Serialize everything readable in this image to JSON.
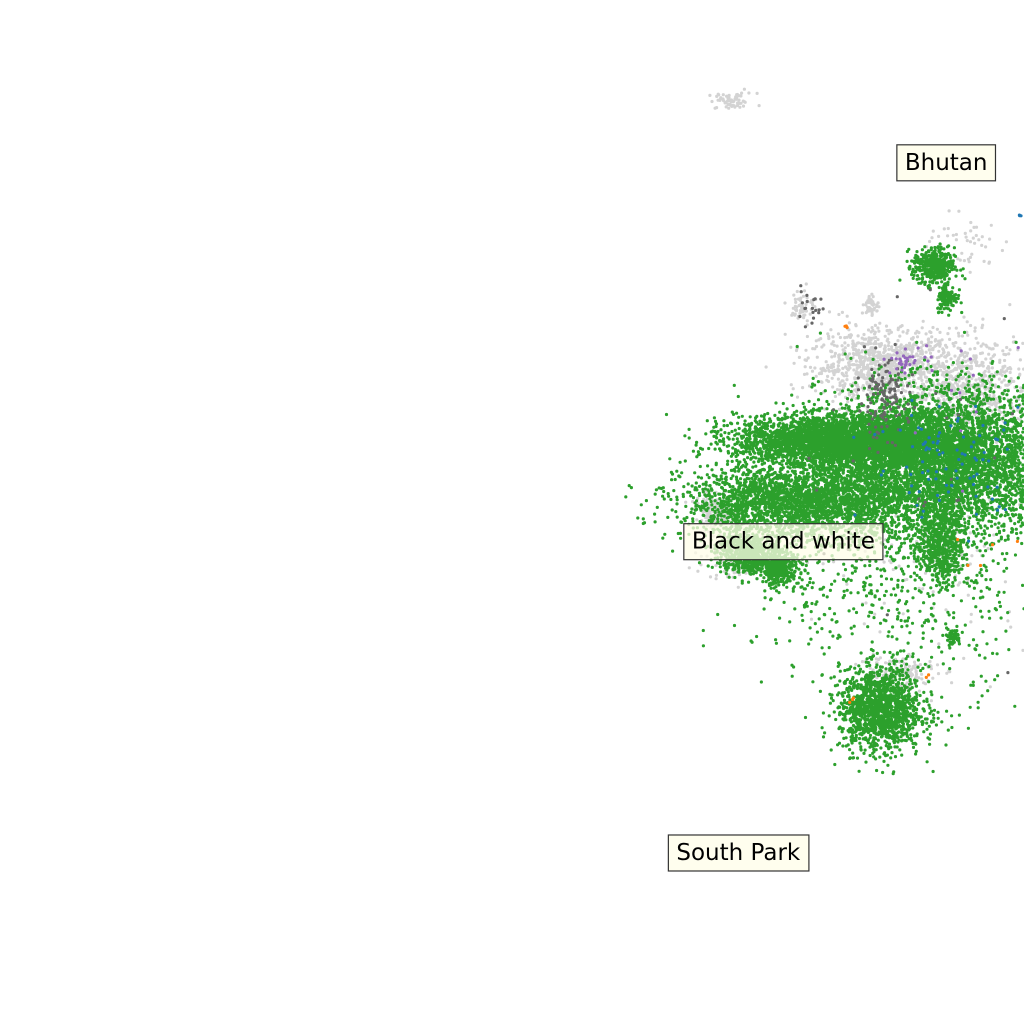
{
  "chart_data": {
    "type": "scatter",
    "title": "",
    "xlabel": "",
    "ylabel": "",
    "xlim": [
      0,
      1
    ],
    "ylim": [
      0,
      1
    ],
    "grid": false,
    "axes_visible": false,
    "colors": {
      "background_points": "#d3d3d3",
      "primary": "#2ca02c",
      "dark_gray": "#666666",
      "purple": "#9467bd",
      "blue": "#1f77b4",
      "orange": "#ff7f0e",
      "label_fill": "#fffde8",
      "label_border": "#333333"
    },
    "series": [
      {
        "color": "#d3d3d3",
        "clusters": [
          {
            "cx": 0.715,
            "cy": 0.901,
            "sx": 0.012,
            "sy": 0.004,
            "n": 60
          },
          {
            "cx": 0.862,
            "cy": 0.644,
            "sx": 0.035,
            "sy": 0.018,
            "n": 900
          },
          {
            "cx": 0.95,
            "cy": 0.62,
            "sx": 0.03,
            "sy": 0.025,
            "n": 600
          },
          {
            "cx": 0.785,
            "cy": 0.702,
            "sx": 0.006,
            "sy": 0.008,
            "n": 60
          },
          {
            "cx": 0.851,
            "cy": 0.702,
            "sx": 0.004,
            "sy": 0.005,
            "n": 40
          },
          {
            "cx": 0.7,
            "cy": 0.5,
            "sx": 0.01,
            "sy": 0.008,
            "n": 140
          },
          {
            "cx": 0.72,
            "cy": 0.455,
            "sx": 0.015,
            "sy": 0.01,
            "n": 120
          },
          {
            "cx": 0.875,
            "cy": 0.345,
            "sx": 0.02,
            "sy": 0.01,
            "n": 120
          },
          {
            "cx": 0.94,
            "cy": 0.76,
            "sx": 0.02,
            "sy": 0.015,
            "n": 50
          },
          {
            "cx": 0.93,
            "cy": 0.48,
            "sx": 0.06,
            "sy": 0.06,
            "n": 200
          }
        ]
      },
      {
        "color": "#2ca02c",
        "clusters": [
          {
            "cx": 0.82,
            "cy": 0.57,
            "sx": 0.05,
            "sy": 0.012,
            "n": 3500
          },
          {
            "cx": 0.92,
            "cy": 0.55,
            "sx": 0.06,
            "sy": 0.035,
            "n": 9000
          },
          {
            "cx": 0.78,
            "cy": 0.51,
            "sx": 0.055,
            "sy": 0.018,
            "n": 2500
          },
          {
            "cx": 0.73,
            "cy": 0.46,
            "sx": 0.015,
            "sy": 0.01,
            "n": 600
          },
          {
            "cx": 0.76,
            "cy": 0.445,
            "sx": 0.01,
            "sy": 0.008,
            "n": 400
          },
          {
            "cx": 0.92,
            "cy": 0.47,
            "sx": 0.01,
            "sy": 0.02,
            "n": 500
          },
          {
            "cx": 0.912,
            "cy": 0.74,
            "sx": 0.01,
            "sy": 0.009,
            "n": 400
          },
          {
            "cx": 0.925,
            "cy": 0.71,
            "sx": 0.005,
            "sy": 0.007,
            "n": 120
          },
          {
            "cx": 0.93,
            "cy": 0.378,
            "sx": 0.004,
            "sy": 0.004,
            "n": 60
          },
          {
            "cx": 0.86,
            "cy": 0.307,
            "sx": 0.02,
            "sy": 0.02,
            "n": 1400
          },
          {
            "cx": 0.88,
            "cy": 0.44,
            "sx": 0.07,
            "sy": 0.06,
            "n": 700
          }
        ]
      },
      {
        "color": "#666666",
        "clusters": [
          {
            "cx": 0.862,
            "cy": 0.61,
            "sx": 0.012,
            "sy": 0.018,
            "n": 120
          },
          {
            "cx": 0.79,
            "cy": 0.7,
            "sx": 0.008,
            "sy": 0.008,
            "n": 20
          },
          {
            "cx": 0.9,
            "cy": 0.55,
            "sx": 0.08,
            "sy": 0.08,
            "n": 40
          }
        ]
      },
      {
        "color": "#9467bd",
        "clusters": [
          {
            "cx": 0.885,
            "cy": 0.648,
            "sx": 0.01,
            "sy": 0.005,
            "n": 30
          },
          {
            "cx": 0.95,
            "cy": 0.62,
            "sx": 0.03,
            "sy": 0.03,
            "n": 15
          }
        ]
      },
      {
        "color": "#1f77b4",
        "clusters": [
          {
            "cx": 0.93,
            "cy": 0.55,
            "sx": 0.04,
            "sy": 0.03,
            "n": 90
          },
          {
            "cx": 0.996,
            "cy": 0.79,
            "sx": 0.001,
            "sy": 0.001,
            "n": 3
          }
        ]
      },
      {
        "color": "#ff7f0e",
        "clusters": [
          {
            "cx": 0.826,
            "cy": 0.68,
            "sx": 0.002,
            "sy": 0.002,
            "n": 3
          },
          {
            "cx": 0.832,
            "cy": 0.315,
            "sx": 0.002,
            "sy": 0.002,
            "n": 3
          },
          {
            "cx": 0.905,
            "cy": 0.342,
            "sx": 0.002,
            "sy": 0.002,
            "n": 2
          },
          {
            "cx": 0.96,
            "cy": 0.47,
            "sx": 0.02,
            "sy": 0.02,
            "n": 5
          }
        ]
      }
    ],
    "annotations": [
      {
        "text": "Bhutan",
        "x": 0.924,
        "y": 0.841
      },
      {
        "text": "Black and white",
        "x": 0.765,
        "y": 0.471
      },
      {
        "text": "South Park",
        "x": 0.721,
        "y": 0.167
      }
    ]
  }
}
